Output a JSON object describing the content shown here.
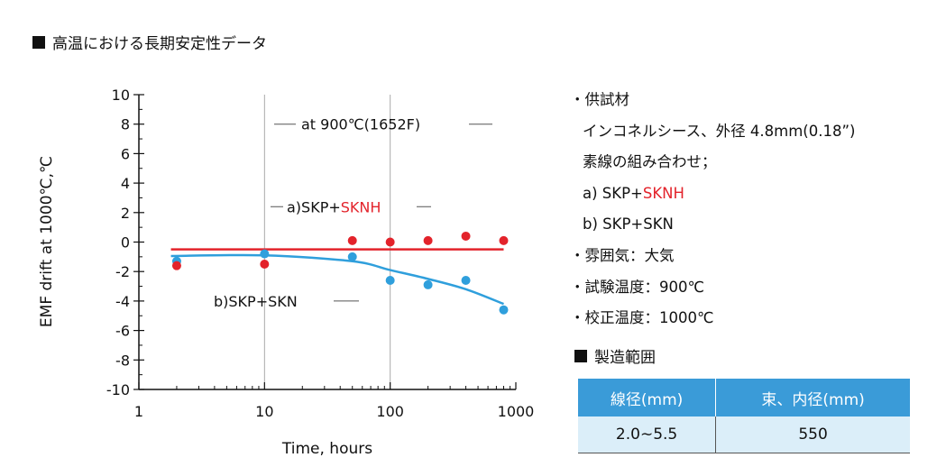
{
  "header": {
    "title": "高温における長期安定性データ"
  },
  "chart_data": {
    "type": "scatter",
    "xscale": "log",
    "xlim": [
      1,
      1000
    ],
    "ylim": [
      -10,
      10
    ],
    "xticks": [
      "1",
      "10",
      "100",
      "1000"
    ],
    "yticks": [
      "10",
      "8",
      "6",
      "4",
      "2",
      "0",
      "-2",
      "-4",
      "-6",
      "-8",
      "-10"
    ],
    "xlabel": "Time, hours",
    "ylabel": "EMF drift at 1000℃,℃",
    "annotation": "at 900℃(1652F)",
    "grid": "vertical at 10 and 100",
    "series": [
      {
        "name": "a)SKP+SKNH",
        "name_parts": [
          "a)SKP+",
          "SKNH"
        ],
        "color": "#e3232b",
        "points": [
          [
            2,
            -1.6
          ],
          [
            10,
            -1.5
          ],
          [
            50,
            0.1
          ],
          [
            100,
            0.0
          ],
          [
            200,
            0.1
          ],
          [
            400,
            0.4
          ],
          [
            800,
            0.1
          ]
        ],
        "trend": [
          [
            1.8,
            -0.5
          ],
          [
            800,
            -0.5
          ]
        ]
      },
      {
        "name": "b)SKP+SKN",
        "color": "#2f9fdc",
        "points": [
          [
            2,
            -1.3
          ],
          [
            10,
            -0.8
          ],
          [
            50,
            -1.0
          ],
          [
            100,
            -2.6
          ],
          [
            200,
            -2.9
          ],
          [
            400,
            -2.6
          ],
          [
            800,
            -4.6
          ]
        ],
        "trend": [
          [
            1.8,
            -0.95
          ],
          [
            10,
            -0.9
          ],
          [
            50,
            -1.3
          ],
          [
            100,
            -1.9
          ],
          [
            200,
            -2.5
          ],
          [
            400,
            -3.2
          ],
          [
            800,
            -4.2
          ]
        ]
      }
    ]
  },
  "specs": {
    "material_label": "・供試材",
    "sheath": "インコネルシース、外径 4.8mm(0.18”)",
    "combo_label": "素線の組み合わせ；",
    "combo_a_prefix": "a) SKP+",
    "combo_a_highlight": "SKNH",
    "combo_b": "b) SKP+SKN",
    "atmosphere": "・雰囲気：大気",
    "test_temp": "・試験温度：900℃",
    "calib_temp": "・校正温度：1000℃"
  },
  "manufacturing": {
    "title": "製造範囲",
    "headers": [
      "線径(mm)",
      "束、内径(mm)"
    ],
    "rows": [
      [
        "2.0∼5.5",
        "550"
      ]
    ],
    "header_color": "#3a9bd8",
    "cell_color": "#dbeef9"
  }
}
